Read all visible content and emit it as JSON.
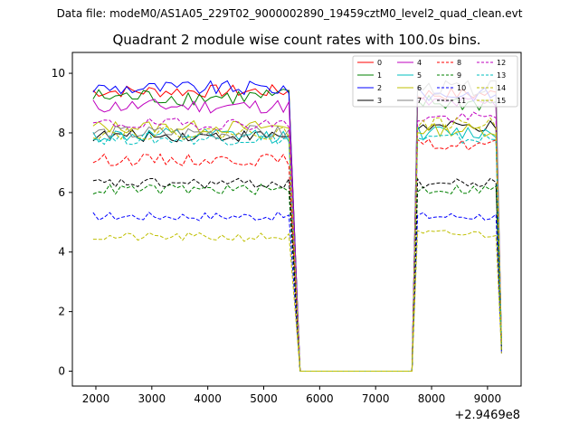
{
  "suptitle": "Data file: modeM0/AS1A05_229T02_9000002890_19459cztM0_level2_quad_clean.evt",
  "chart_data": {
    "type": "line",
    "title": "Quadrant 2 module wise count rates with 100.0s bins.",
    "xlabel": "",
    "ylabel": "",
    "x_offset_label": "+2.9469e8",
    "xlim": [
      1580,
      9600
    ],
    "ylim": [
      -0.5,
      10.7
    ],
    "xticks": [
      2000,
      3000,
      4000,
      5000,
      6000,
      7000,
      8000,
      9000
    ],
    "yticks": [
      0,
      2,
      4,
      6,
      8,
      10
    ],
    "legend_position": "top-right",
    "segments": [
      [
        1950,
        5450
      ],
      [
        7650,
        9150
      ]
    ],
    "gap": [
      5650,
      7650
    ],
    "end_x": 9250,
    "step": 100,
    "series": [
      {
        "name": "0",
        "color": "#ff0000",
        "dash": "solid",
        "level": 9.4,
        "noise": 0.22,
        "rise_level": 9.3,
        "end_value": 0.8
      },
      {
        "name": "1",
        "color": "#008000",
        "dash": "solid",
        "level": 9.2,
        "noise": 0.3,
        "rise_level": 9.0,
        "end_value": 0.9
      },
      {
        "name": "2",
        "color": "#0000ff",
        "dash": "solid",
        "level": 9.5,
        "noise": 0.25,
        "rise_level": 9.3,
        "end_value": 0.7
      },
      {
        "name": "3",
        "color": "#000000",
        "dash": "solid",
        "level": 7.9,
        "noise": 0.2,
        "rise_level": 8.2,
        "end_value": 0.8
      },
      {
        "name": "4",
        "color": "#bf00bf",
        "dash": "solid",
        "level": 8.9,
        "noise": 0.25,
        "rise_level": 9.0,
        "end_value": 0.9
      },
      {
        "name": "5",
        "color": "#00bfbf",
        "dash": "solid",
        "level": 7.9,
        "noise": 0.25,
        "rise_level": 8.0,
        "end_value": 0.8
      },
      {
        "name": "6",
        "color": "#bfbf00",
        "dash": "solid",
        "level": 8.2,
        "noise": 0.22,
        "rise_level": 8.1,
        "end_value": 0.8
      },
      {
        "name": "7",
        "color": "#808080",
        "dash": "solid",
        "level": 8.0,
        "noise": 0.25,
        "rise_level": 9.5,
        "end_value": 0.9
      },
      {
        "name": "8",
        "color": "#ff0000",
        "dash": "dashed",
        "level": 7.1,
        "noise": 0.2,
        "rise_level": 7.6,
        "end_value": 0.7
      },
      {
        "name": "9",
        "color": "#008000",
        "dash": "dashed",
        "level": 6.1,
        "noise": 0.18,
        "rise_level": 6.1,
        "end_value": 0.7
      },
      {
        "name": "10",
        "color": "#0000ff",
        "dash": "dashed",
        "level": 5.2,
        "noise": 0.15,
        "rise_level": 5.2,
        "end_value": 0.6
      },
      {
        "name": "11",
        "color": "#000000",
        "dash": "dashed",
        "level": 6.3,
        "noise": 0.18,
        "rise_level": 6.3,
        "end_value": 0.8
      },
      {
        "name": "12",
        "color": "#bf00bf",
        "dash": "dashed",
        "level": 8.3,
        "noise": 0.2,
        "rise_level": 8.5,
        "end_value": 0.9
      },
      {
        "name": "13",
        "color": "#00bfbf",
        "dash": "dashed",
        "level": 7.8,
        "noise": 0.2,
        "rise_level": 7.8,
        "end_value": 0.8
      },
      {
        "name": "14",
        "color": "#bfbf00",
        "dash": "dashed",
        "level": 4.5,
        "noise": 0.15,
        "rise_level": 4.6,
        "end_value": 0.6
      },
      {
        "name": "15",
        "color": "#bfbf00",
        "dash": "dashed",
        "level": 8.0,
        "noise": 0.22,
        "rise_level": 8.3,
        "end_value": 0.9
      }
    ]
  }
}
